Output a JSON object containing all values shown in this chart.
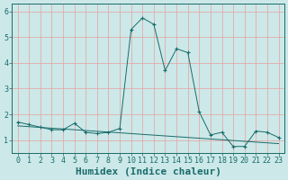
{
  "x": [
    0,
    1,
    2,
    3,
    4,
    5,
    6,
    7,
    8,
    9,
    10,
    11,
    12,
    13,
    14,
    15,
    16,
    17,
    18,
    19,
    20,
    21,
    22,
    23
  ],
  "y_main": [
    1.7,
    1.6,
    1.5,
    1.4,
    1.4,
    1.65,
    1.3,
    1.25,
    1.3,
    1.45,
    5.3,
    5.75,
    5.5,
    3.7,
    4.55,
    4.4,
    2.1,
    1.2,
    1.3,
    0.75,
    0.75,
    1.35,
    1.3,
    1.1
  ],
  "y_trend": [
    1.55,
    1.52,
    1.49,
    1.46,
    1.43,
    1.4,
    1.37,
    1.34,
    1.31,
    1.28,
    1.25,
    1.22,
    1.19,
    1.16,
    1.13,
    1.1,
    1.07,
    1.04,
    1.01,
    0.98,
    0.95,
    0.92,
    0.89,
    0.86
  ],
  "line_color": "#1a6b6b",
  "bg_color": "#cce8e8",
  "grid_color": "#e8a0a0",
  "xlabel": "Humidex (Indice chaleur)",
  "ylim": [
    0.5,
    6.3
  ],
  "xlim": [
    -0.5,
    23.5
  ],
  "yticks": [
    1,
    2,
    3,
    4,
    5,
    6
  ],
  "xticks": [
    0,
    1,
    2,
    3,
    4,
    5,
    6,
    7,
    8,
    9,
    10,
    11,
    12,
    13,
    14,
    15,
    16,
    17,
    18,
    19,
    20,
    21,
    22,
    23
  ],
  "xtick_labels": [
    "0",
    "1",
    "2",
    "3",
    "4",
    "5",
    "6",
    "7",
    "8",
    "9",
    "10",
    "11",
    "12",
    "13",
    "14",
    "15",
    "16",
    "17",
    "18",
    "19",
    "20",
    "21",
    "22",
    "23"
  ],
  "tick_fontsize": 6,
  "xlabel_fontsize": 8,
  "marker": "+"
}
